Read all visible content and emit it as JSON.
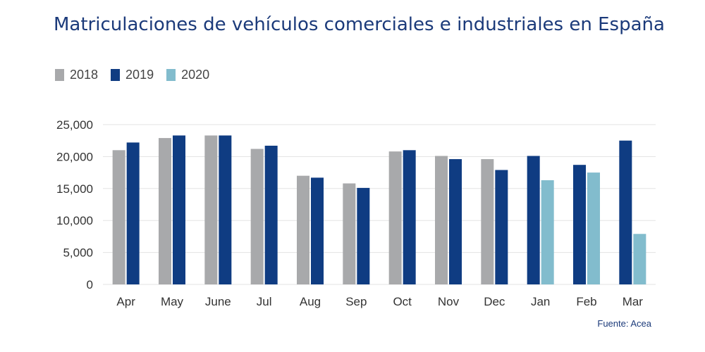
{
  "title": "Matriculaciones de vehículos comerciales e industriales en España",
  "source": "Fuente: Acea",
  "colors": {
    "2018": "#a8a9ab",
    "2019": "#0f3c82",
    "2020": "#82bccd",
    "title": "#1b3a7a",
    "grid": "#e3e3e3"
  },
  "chart_data": {
    "type": "bar",
    "title": "Matriculaciones de vehículos comerciales e industriales en España",
    "xlabel": "",
    "ylabel": "",
    "ylim": [
      0,
      25000
    ],
    "yticks": [
      "0",
      "5,000",
      "10,000",
      "15,000",
      "20,000",
      "25,000"
    ],
    "ytick_values": [
      0,
      5000,
      10000,
      15000,
      20000,
      25000
    ],
    "legend_position": "top-left",
    "categories": [
      "Apr",
      "May",
      "June",
      "Jul",
      "Aug",
      "Sep",
      "Oct",
      "Nov",
      "Dec",
      "Jan",
      "Feb",
      "Mar"
    ],
    "series": [
      {
        "name": "2018",
        "values": [
          21000,
          22900,
          23300,
          21200,
          17000,
          15800,
          20800,
          20100,
          19600,
          null,
          null,
          null
        ]
      },
      {
        "name": "2019",
        "values": [
          22200,
          23300,
          23300,
          21700,
          16700,
          15100,
          21000,
          19600,
          17900,
          20100,
          18700,
          22500
        ]
      },
      {
        "name": "2020",
        "values": [
          null,
          null,
          null,
          null,
          null,
          null,
          null,
          null,
          null,
          16300,
          17500,
          7900
        ]
      }
    ]
  }
}
